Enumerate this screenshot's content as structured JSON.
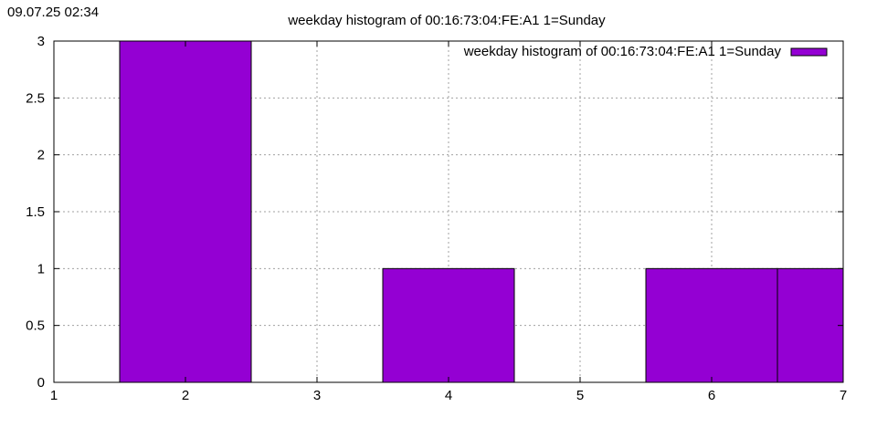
{
  "timestamp": "09.07.25 02:34",
  "chart_data": {
    "type": "bar",
    "title": "weekday histogram of 00:16:73:04:FE:A1 1=Sunday",
    "xlabel": "",
    "ylabel": "",
    "xlim": [
      1,
      7
    ],
    "ylim": [
      0,
      3
    ],
    "x_ticks": [
      "1",
      "2",
      "3",
      "4",
      "5",
      "6",
      "7"
    ],
    "y_ticks": [
      "0",
      "0.5",
      "1",
      "1.5",
      "2",
      "2.5",
      "3"
    ],
    "grid": true,
    "legend_position": "top-right",
    "bar_color": "#9400d3",
    "series": [
      {
        "name": "weekday histogram of 00:16:73:04:FE:A1 1=Sunday",
        "x": [
          2,
          4,
          6,
          7
        ],
        "values": [
          3,
          1,
          1,
          1
        ]
      }
    ]
  }
}
